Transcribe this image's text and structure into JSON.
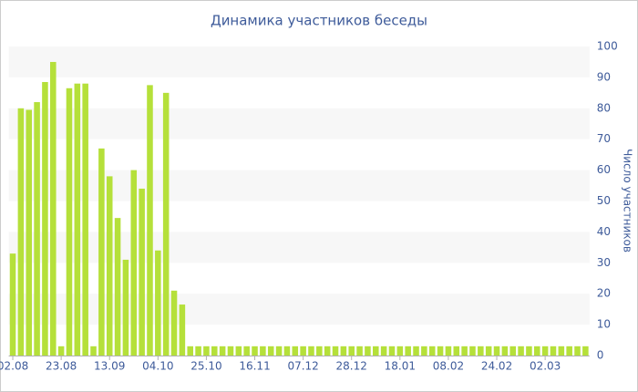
{
  "chart_data": {
    "type": "bar",
    "title": "Динамика участников беседы",
    "y_axis_label": "Число участников",
    "categories": [
      "02.08",
      null,
      null,
      null,
      null,
      null,
      "23.08",
      null,
      null,
      null,
      null,
      null,
      "13.09",
      null,
      null,
      null,
      null,
      null,
      "04.10",
      null,
      null,
      null,
      null,
      null,
      "25.10",
      null,
      null,
      null,
      null,
      null,
      "16.11",
      null,
      null,
      null,
      null,
      null,
      "07.12",
      null,
      null,
      null,
      null,
      null,
      "28.12",
      null,
      null,
      null,
      null,
      null,
      "18.01",
      null,
      null,
      null,
      null,
      null,
      "08.02",
      null,
      null,
      null,
      null,
      null,
      "24.02",
      null,
      null,
      null,
      null,
      null,
      "02.03",
      null,
      null,
      null,
      null,
      null
    ],
    "values": [
      33,
      80,
      79.5,
      82,
      88.5,
      95,
      3,
      86.5,
      88,
      88,
      3,
      67,
      58,
      44.5,
      31,
      60,
      54,
      87.5,
      34,
      85,
      21,
      16.5,
      3,
      3,
      3,
      3,
      3,
      3,
      3,
      3,
      3,
      3,
      3,
      3,
      3,
      3,
      3,
      3,
      3,
      3,
      3,
      3,
      3,
      3,
      3,
      3,
      3,
      3,
      3,
      3,
      3,
      3,
      3,
      3,
      3,
      3,
      3,
      3,
      3,
      3,
      3,
      3,
      3,
      3,
      3,
      3,
      3,
      3,
      3,
      3,
      3,
      3
    ],
    "color": "#b5e03a",
    "ylim": [
      0,
      100
    ],
    "yticks": [
      0,
      10,
      20,
      30,
      40,
      50,
      60,
      70,
      80,
      90,
      100
    ],
    "grid_bands": true,
    "y_axis_side": "right"
  }
}
